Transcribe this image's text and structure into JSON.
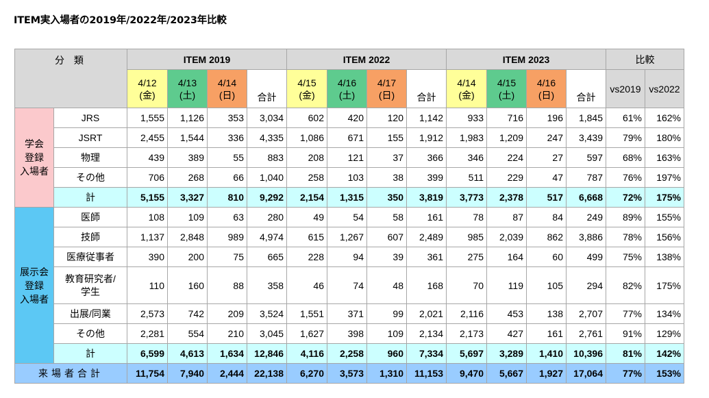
{
  "title": "ITEM実入場者の2019年/2022年/2023年比較",
  "header": {
    "category_label": "分 類",
    "groups": [
      "ITEM 2019",
      "ITEM 2022",
      "ITEM 2023",
      "比較"
    ],
    "dates": [
      {
        "md": "4/12",
        "dow": "(金)"
      },
      {
        "md": "4/13",
        "dow": "(土)"
      },
      {
        "md": "4/14",
        "dow": "(日)"
      },
      {
        "md": "4/15",
        "dow": "(金)"
      },
      {
        "md": "4/16",
        "dow": "(土)"
      },
      {
        "md": "4/17",
        "dow": "(日)"
      },
      {
        "md": "4/14",
        "dow": "(金)"
      },
      {
        "md": "4/15",
        "dow": "(土)"
      },
      {
        "md": "4/16",
        "dow": "(日)"
      }
    ],
    "sum_label": "合計",
    "vs2019": "vs2019",
    "vs2022": "vs2022"
  },
  "groups": [
    {
      "label": "学会\n登録\n入場者",
      "rows": [
        {
          "cat": "JRS",
          "v": [
            "1,555",
            "1,126",
            "353",
            "3,034",
            "602",
            "420",
            "120",
            "1,142",
            "933",
            "716",
            "196",
            "1,845",
            "61%",
            "162%"
          ]
        },
        {
          "cat": "JSRT",
          "v": [
            "2,455",
            "1,544",
            "336",
            "4,335",
            "1,086",
            "671",
            "155",
            "1,912",
            "1,983",
            "1,209",
            "247",
            "3,439",
            "79%",
            "180%"
          ]
        },
        {
          "cat": "物理",
          "v": [
            "439",
            "389",
            "55",
            "883",
            "208",
            "121",
            "37",
            "366",
            "346",
            "224",
            "27",
            "597",
            "68%",
            "163%"
          ]
        },
        {
          "cat": "その他",
          "v": [
            "706",
            "268",
            "66",
            "1,040",
            "258",
            "103",
            "38",
            "399",
            "511",
            "229",
            "47",
            "787",
            "76%",
            "197%"
          ]
        }
      ],
      "subtotal": {
        "cat": "計",
        "v": [
          "5,155",
          "3,327",
          "810",
          "9,292",
          "2,154",
          "1,315",
          "350",
          "3,819",
          "3,773",
          "2,378",
          "517",
          "6,668",
          "72%",
          "175%"
        ]
      }
    },
    {
      "label": "展示会\n登録\n入場者",
      "rows": [
        {
          "cat": "医師",
          "v": [
            "108",
            "109",
            "63",
            "280",
            "49",
            "54",
            "58",
            "161",
            "78",
            "87",
            "84",
            "249",
            "89%",
            "155%"
          ]
        },
        {
          "cat": "技師",
          "v": [
            "1,137",
            "2,848",
            "989",
            "4,974",
            "615",
            "1,267",
            "607",
            "2,489",
            "985",
            "2,039",
            "862",
            "3,886",
            "78%",
            "156%"
          ]
        },
        {
          "cat": "医療従事者",
          "v": [
            "390",
            "200",
            "75",
            "665",
            "228",
            "94",
            "39",
            "361",
            "275",
            "164",
            "60",
            "499",
            "75%",
            "138%"
          ]
        },
        {
          "cat": "教育研究者/\n学生",
          "v": [
            "110",
            "160",
            "88",
            "358",
            "46",
            "74",
            "48",
            "168",
            "70",
            "119",
            "105",
            "294",
            "82%",
            "175%"
          ]
        },
        {
          "cat": "出展/同業",
          "v": [
            "2,573",
            "742",
            "209",
            "3,524",
            "1,551",
            "371",
            "99",
            "2,021",
            "2,116",
            "453",
            "138",
            "2,707",
            "77%",
            "134%"
          ]
        },
        {
          "cat": "その他",
          "v": [
            "2,281",
            "554",
            "210",
            "3,045",
            "1,627",
            "398",
            "109",
            "2,134",
            "2,173",
            "427",
            "161",
            "2,761",
            "91%",
            "129%"
          ]
        }
      ],
      "subtotal": {
        "cat": "計",
        "v": [
          "6,599",
          "4,613",
          "1,634",
          "12,846",
          "4,116",
          "2,258",
          "960",
          "7,334",
          "5,697",
          "3,289",
          "1,410",
          "10,396",
          "81%",
          "142%"
        ]
      }
    }
  ],
  "grand_total": {
    "label": "来場者合計",
    "v": [
      "11,754",
      "7,940",
      "2,444",
      "22,138",
      "6,270",
      "3,573",
      "1,310",
      "11,153",
      "9,470",
      "5,667",
      "1,927",
      "17,064",
      "77%",
      "153%"
    ]
  }
}
